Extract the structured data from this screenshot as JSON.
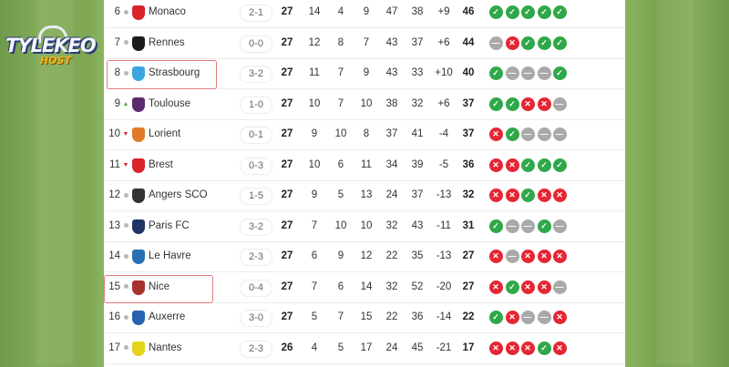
{
  "watermark": {
    "line1": "TYLEKEO",
    "line2": "HOST"
  },
  "colors": {
    "win": "#2fa84a",
    "loss": "#e52633",
    "draw": "#a9a9a9",
    "highlight": "#e07a80"
  },
  "highlighted_teams": [
    "Strasbourg",
    "Nice"
  ],
  "columns": [
    "rank",
    "trend",
    "team",
    "last_score",
    "played",
    "won",
    "drawn",
    "lost",
    "goals_for",
    "goals_against",
    "goal_diff",
    "points",
    "form"
  ],
  "rows": [
    {
      "rank": "6",
      "trend": "same",
      "crest": "#d8232a",
      "team": "Monaco",
      "score": "2-1",
      "p": "27",
      "w": "14",
      "d": "4",
      "l": "9",
      "gf": "47",
      "ga": "38",
      "gd": "+9",
      "pts": "46",
      "form": [
        "W",
        "W",
        "W",
        "W",
        "W"
      ]
    },
    {
      "rank": "7",
      "trend": "same",
      "crest": "#1c1c1c",
      "team": "Rennes",
      "score": "0-0",
      "p": "27",
      "w": "12",
      "d": "8",
      "l": "7",
      "gf": "43",
      "ga": "37",
      "gd": "+6",
      "pts": "44",
      "form": [
        "D",
        "L",
        "W",
        "W",
        "W"
      ]
    },
    {
      "rank": "8",
      "trend": "same",
      "crest": "#3aa6dd",
      "team": "Strasbourg",
      "score": "3-2",
      "p": "27",
      "w": "11",
      "d": "7",
      "l": "9",
      "gf": "43",
      "ga": "33",
      "gd": "+10",
      "pts": "40",
      "form": [
        "W",
        "D",
        "D",
        "D",
        "W"
      ]
    },
    {
      "rank": "9",
      "trend": "up",
      "crest": "#5b2a6e",
      "team": "Toulouse",
      "score": "1-0",
      "p": "27",
      "w": "10",
      "d": "7",
      "l": "10",
      "gf": "38",
      "ga": "32",
      "gd": "+6",
      "pts": "37",
      "form": [
        "W",
        "W",
        "L",
        "L",
        "D"
      ]
    },
    {
      "rank": "10",
      "trend": "down",
      "crest": "#e07a24",
      "team": "Lorient",
      "score": "0-1",
      "p": "27",
      "w": "9",
      "d": "10",
      "l": "8",
      "gf": "37",
      "ga": "41",
      "gd": "-4",
      "pts": "37",
      "form": [
        "L",
        "W",
        "D",
        "D",
        "D"
      ]
    },
    {
      "rank": "11",
      "trend": "down",
      "crest": "#d8232a",
      "team": "Brest",
      "score": "0-3",
      "p": "27",
      "w": "10",
      "d": "6",
      "l": "11",
      "gf": "34",
      "ga": "39",
      "gd": "-5",
      "pts": "36",
      "form": [
        "L",
        "L",
        "W",
        "W",
        "W"
      ]
    },
    {
      "rank": "12",
      "trend": "same",
      "crest": "#333333",
      "team": "Angers SCO",
      "score": "1-5",
      "p": "27",
      "w": "9",
      "d": "5",
      "l": "13",
      "gf": "24",
      "ga": "37",
      "gd": "-13",
      "pts": "32",
      "form": [
        "L",
        "L",
        "W",
        "L",
        "L"
      ]
    },
    {
      "rank": "13",
      "trend": "same",
      "crest": "#1f3566",
      "team": "Paris FC",
      "score": "3-2",
      "p": "27",
      "w": "7",
      "d": "10",
      "l": "10",
      "gf": "32",
      "ga": "43",
      "gd": "-11",
      "pts": "31",
      "form": [
        "W",
        "D",
        "D",
        "W",
        "D"
      ]
    },
    {
      "rank": "14",
      "trend": "same",
      "crest": "#2a6fb5",
      "team": "Le Havre",
      "score": "2-3",
      "p": "27",
      "w": "6",
      "d": "9",
      "l": "12",
      "gf": "22",
      "ga": "35",
      "gd": "-13",
      "pts": "27",
      "form": [
        "L",
        "D",
        "L",
        "L",
        "L"
      ]
    },
    {
      "rank": "15",
      "trend": "same",
      "crest": "#a8322e",
      "team": "Nice",
      "score": "0-4",
      "p": "27",
      "w": "7",
      "d": "6",
      "l": "14",
      "gf": "32",
      "ga": "52",
      "gd": "-20",
      "pts": "27",
      "form": [
        "L",
        "W",
        "L",
        "L",
        "D"
      ]
    },
    {
      "rank": "16",
      "trend": "same",
      "crest": "#2563b0",
      "team": "Auxerre",
      "score": "3-0",
      "p": "27",
      "w": "5",
      "d": "7",
      "l": "15",
      "gf": "22",
      "ga": "36",
      "gd": "-14",
      "pts": "22",
      "form": [
        "W",
        "L",
        "D",
        "D",
        "L"
      ]
    },
    {
      "rank": "17",
      "trend": "same",
      "crest": "#e5d21a",
      "team": "Nantes",
      "score": "2-3",
      "p": "26",
      "w": "4",
      "d": "5",
      "l": "17",
      "gf": "24",
      "ga": "45",
      "gd": "-21",
      "pts": "17",
      "form": [
        "L",
        "L",
        "L",
        "W",
        "L"
      ]
    }
  ]
}
